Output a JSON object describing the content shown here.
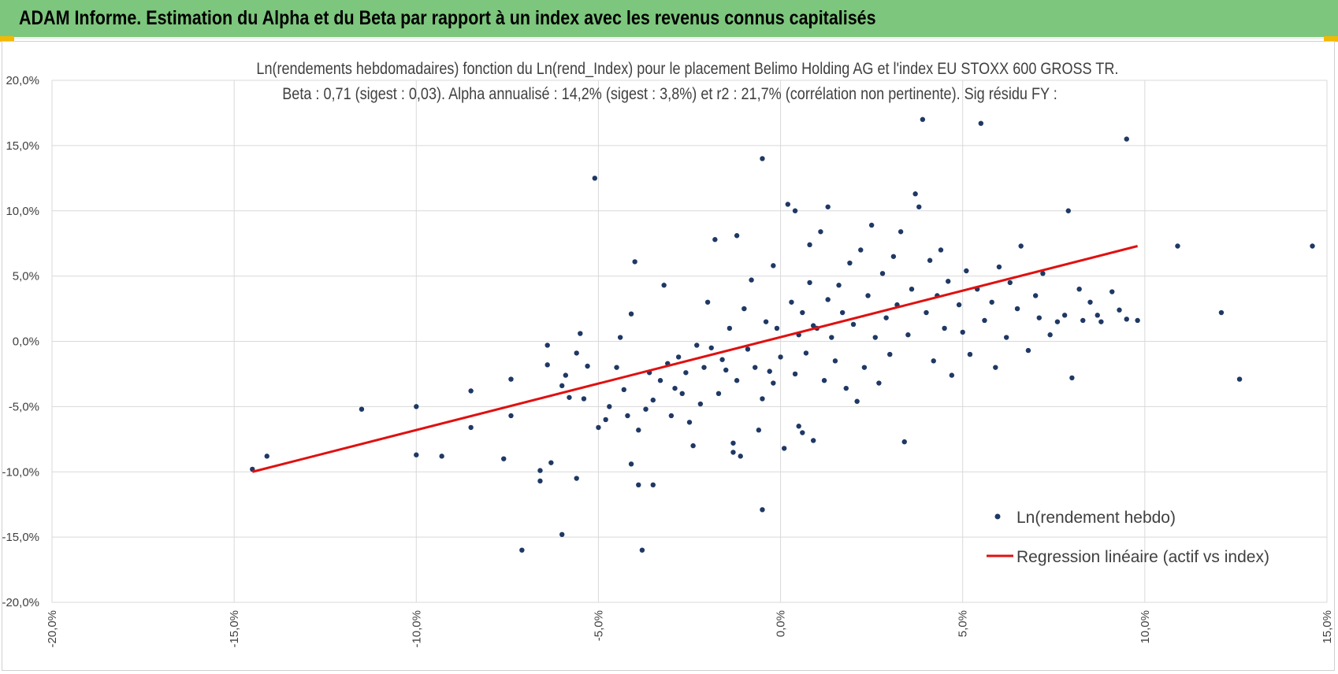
{
  "banner": {
    "title": "ADAM Informe. Estimation du Alpha et du Beta par rapport à un index avec les revenus connus capitalisés",
    "background": "#7dc67d",
    "corner_color": "#f5b800"
  },
  "chart_data": {
    "type": "scatter",
    "title": "Ln(rendements hebdomadaires) fonction du Ln(rend_Index) pour le placement Belimo Holding AG et l'index EU STOXX 600 GROSS TR.",
    "subtitle": "Beta : 0,71 (sigest : 0,03). Alpha annualisé : 14,2% (sigest : 3,8%) et r2 : 21,7% (corrélation non pertinente). Sig résidu FY :",
    "xlabel": "",
    "ylabel": "",
    "xlim": [
      -0.2,
      0.15
    ],
    "ylim": [
      -0.2,
      0.2
    ],
    "x_ticks": [
      -0.2,
      -0.15,
      -0.1,
      -0.05,
      0.0,
      0.05,
      0.1,
      0.15
    ],
    "x_tick_labels": [
      "-20,0%",
      "-15,0%",
      "-10,0%",
      "-5,0%",
      "0,0%",
      "5,0%",
      "10,0%",
      "15,0%"
    ],
    "y_ticks": [
      0.2,
      0.15,
      0.1,
      0.05,
      0.0,
      -0.05,
      -0.1,
      -0.15,
      -0.2
    ],
    "y_tick_labels": [
      "20,0%",
      "15,0%",
      "10,0%",
      "5,0%",
      "0,0%",
      "-5,0%",
      "-10,0%",
      "-15,0%",
      "-20,0%"
    ],
    "grid": true,
    "legend_position": "bottom-right",
    "series": [
      {
        "name": "Ln(rendement hebdo)",
        "kind": "scatter",
        "color": "#1f3864",
        "points": [
          [
            -0.145,
            -0.098
          ],
          [
            -0.141,
            -0.088
          ],
          [
            -0.115,
            -0.052
          ],
          [
            -0.1,
            -0.087
          ],
          [
            -0.1,
            -0.05
          ],
          [
            -0.093,
            -0.088
          ],
          [
            -0.085,
            -0.038
          ],
          [
            -0.085,
            -0.066
          ],
          [
            -0.076,
            -0.09
          ],
          [
            -0.074,
            -0.057
          ],
          [
            -0.074,
            -0.029
          ],
          [
            -0.071,
            -0.16
          ],
          [
            -0.066,
            -0.107
          ],
          [
            -0.066,
            -0.099
          ],
          [
            -0.064,
            -0.018
          ],
          [
            -0.064,
            -0.003
          ],
          [
            -0.063,
            -0.093
          ],
          [
            -0.06,
            -0.148
          ],
          [
            -0.06,
            -0.034
          ],
          [
            -0.059,
            -0.026
          ],
          [
            -0.058,
            -0.043
          ],
          [
            -0.056,
            -0.105
          ],
          [
            -0.056,
            -0.009
          ],
          [
            -0.055,
            0.006
          ],
          [
            -0.054,
            -0.044
          ],
          [
            -0.053,
            -0.019
          ],
          [
            -0.051,
            0.125
          ],
          [
            -0.05,
            -0.066
          ],
          [
            -0.048,
            -0.06
          ],
          [
            -0.047,
            -0.05
          ],
          [
            -0.045,
            -0.02
          ],
          [
            -0.044,
            0.003
          ],
          [
            -0.043,
            -0.037
          ],
          [
            -0.042,
            -0.057
          ],
          [
            -0.041,
            0.021
          ],
          [
            -0.041,
            -0.094
          ],
          [
            -0.04,
            0.061
          ],
          [
            -0.039,
            -0.11
          ],
          [
            -0.039,
            -0.068
          ],
          [
            -0.038,
            -0.16
          ],
          [
            -0.037,
            -0.052
          ],
          [
            -0.036,
            -0.024
          ],
          [
            -0.035,
            -0.11
          ],
          [
            -0.035,
            -0.045
          ],
          [
            -0.033,
            -0.03
          ],
          [
            -0.032,
            0.043
          ],
          [
            -0.031,
            -0.017
          ],
          [
            -0.03,
            -0.057
          ],
          [
            -0.029,
            -0.036
          ],
          [
            -0.028,
            -0.012
          ],
          [
            -0.027,
            -0.04
          ],
          [
            -0.026,
            -0.024
          ],
          [
            -0.025,
            -0.062
          ],
          [
            -0.024,
            -0.08
          ],
          [
            -0.023,
            -0.003
          ],
          [
            -0.022,
            -0.048
          ],
          [
            -0.021,
            -0.02
          ],
          [
            -0.02,
            0.03
          ],
          [
            -0.019,
            -0.005
          ],
          [
            -0.018,
            0.078
          ],
          [
            -0.017,
            -0.04
          ],
          [
            -0.016,
            -0.014
          ],
          [
            -0.015,
            -0.022
          ],
          [
            -0.014,
            0.01
          ],
          [
            -0.013,
            -0.078
          ],
          [
            -0.013,
            -0.085
          ],
          [
            -0.012,
            0.081
          ],
          [
            -0.012,
            -0.03
          ],
          [
            -0.011,
            -0.088
          ],
          [
            -0.01,
            0.025
          ],
          [
            -0.009,
            -0.006
          ],
          [
            -0.008,
            0.047
          ],
          [
            -0.007,
            -0.02
          ],
          [
            -0.006,
            -0.068
          ],
          [
            -0.005,
            -0.044
          ],
          [
            -0.005,
            0.14
          ],
          [
            -0.005,
            -0.129
          ],
          [
            -0.004,
            0.015
          ],
          [
            -0.003,
            -0.023
          ],
          [
            -0.002,
            0.058
          ],
          [
            -0.002,
            -0.032
          ],
          [
            -0.001,
            0.01
          ],
          [
            0.0,
            -0.012
          ],
          [
            0.001,
            -0.082
          ],
          [
            0.002,
            0.105
          ],
          [
            0.003,
            0.03
          ],
          [
            0.004,
            0.1
          ],
          [
            0.004,
            -0.025
          ],
          [
            0.005,
            0.005
          ],
          [
            0.005,
            -0.065
          ],
          [
            0.006,
            0.022
          ],
          [
            0.006,
            -0.07
          ],
          [
            0.007,
            -0.009
          ],
          [
            0.008,
            0.074
          ],
          [
            0.008,
            0.045
          ],
          [
            0.009,
            0.012
          ],
          [
            0.009,
            -0.076
          ],
          [
            0.01,
            0.01
          ],
          [
            0.011,
            0.084
          ],
          [
            0.012,
            -0.03
          ],
          [
            0.013,
            0.103
          ],
          [
            0.013,
            0.032
          ],
          [
            0.014,
            0.003
          ],
          [
            0.015,
            -0.015
          ],
          [
            0.016,
            0.043
          ],
          [
            0.017,
            0.022
          ],
          [
            0.018,
            -0.036
          ],
          [
            0.019,
            0.06
          ],
          [
            0.02,
            0.013
          ],
          [
            0.021,
            -0.046
          ],
          [
            0.022,
            0.07
          ],
          [
            0.023,
            -0.02
          ],
          [
            0.024,
            0.035
          ],
          [
            0.025,
            0.089
          ],
          [
            0.026,
            0.003
          ],
          [
            0.027,
            -0.032
          ],
          [
            0.028,
            0.052
          ],
          [
            0.029,
            0.018
          ],
          [
            0.03,
            -0.01
          ],
          [
            0.031,
            0.065
          ],
          [
            0.032,
            0.028
          ],
          [
            0.033,
            0.084
          ],
          [
            0.034,
            -0.077
          ],
          [
            0.035,
            0.005
          ],
          [
            0.036,
            0.04
          ],
          [
            0.037,
            0.113
          ],
          [
            0.038,
            0.103
          ],
          [
            0.039,
            0.17
          ],
          [
            0.04,
            0.022
          ],
          [
            0.041,
            0.062
          ],
          [
            0.042,
            -0.015
          ],
          [
            0.043,
            0.035
          ],
          [
            0.044,
            0.07
          ],
          [
            0.045,
            0.01
          ],
          [
            0.046,
            0.046
          ],
          [
            0.047,
            -0.026
          ],
          [
            0.049,
            0.028
          ],
          [
            0.05,
            0.007
          ],
          [
            0.051,
            0.054
          ],
          [
            0.052,
            -0.01
          ],
          [
            0.054,
            0.04
          ],
          [
            0.055,
            0.167
          ],
          [
            0.056,
            0.016
          ],
          [
            0.058,
            0.03
          ],
          [
            0.059,
            -0.02
          ],
          [
            0.06,
            0.057
          ],
          [
            0.062,
            0.003
          ],
          [
            0.063,
            0.045
          ],
          [
            0.065,
            0.025
          ],
          [
            0.066,
            0.073
          ],
          [
            0.068,
            -0.007
          ],
          [
            0.07,
            0.035
          ],
          [
            0.071,
            0.018
          ],
          [
            0.072,
            0.052
          ],
          [
            0.074,
            0.005
          ],
          [
            0.076,
            0.015
          ],
          [
            0.078,
            0.02
          ],
          [
            0.079,
            0.1
          ],
          [
            0.08,
            -0.028
          ],
          [
            0.082,
            0.04
          ],
          [
            0.083,
            0.016
          ],
          [
            0.085,
            0.03
          ],
          [
            0.087,
            0.02
          ],
          [
            0.088,
            0.015
          ],
          [
            0.091,
            0.038
          ],
          [
            0.093,
            0.024
          ],
          [
            0.095,
            0.017
          ],
          [
            0.095,
            0.155
          ],
          [
            0.098,
            0.016
          ],
          [
            0.109,
            0.073
          ],
          [
            0.121,
            0.022
          ],
          [
            0.126,
            -0.029
          ],
          [
            0.146,
            0.073
          ]
        ]
      },
      {
        "name": "Regression linéaire (actif vs index)",
        "kind": "line",
        "color": "#e01010",
        "points": [
          [
            -0.145,
            -0.1
          ],
          [
            0.098,
            0.073
          ]
        ]
      }
    ]
  }
}
